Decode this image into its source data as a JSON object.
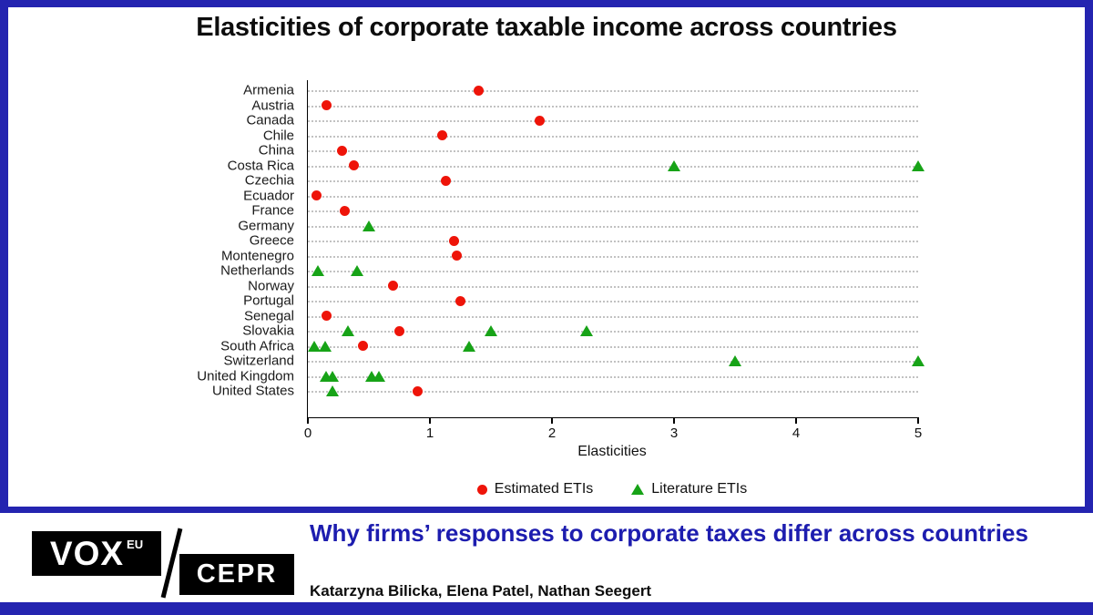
{
  "frame": {
    "accent_color": "#2424b0"
  },
  "chart": {
    "title": "Elasticities of corporate taxable income across countries",
    "xlabel": "Elasticities",
    "x_ticks": [
      0,
      1,
      2,
      3,
      4,
      5
    ]
  },
  "chart_data": {
    "type": "scatter",
    "title": "Elasticities of corporate taxable income across countries",
    "xlabel": "Elasticities",
    "ylabel": "",
    "xlim": [
      0,
      5
    ],
    "x_ticks": [
      0,
      1,
      2,
      3,
      4,
      5
    ],
    "grid": "horizontal dotted",
    "legend_position": "bottom",
    "categories": [
      "Armenia",
      "Austria",
      "Canada",
      "Chile",
      "China",
      "Costa Rica",
      "Czechia",
      "Ecuador",
      "France",
      "Germany",
      "Greece",
      "Montenegro",
      "Netherlands",
      "Norway",
      "Portugal",
      "Senegal",
      "Slovakia",
      "South Africa",
      "Switzerland",
      "United Kingdom",
      "United States"
    ],
    "series": [
      {
        "name": "Estimated ETIs",
        "marker": "circle",
        "color": "#ee1409",
        "points": [
          {
            "country": "Armenia",
            "x": 1.4
          },
          {
            "country": "Austria",
            "x": 0.15
          },
          {
            "country": "Canada",
            "x": 1.9
          },
          {
            "country": "Chile",
            "x": 1.1
          },
          {
            "country": "China",
            "x": 0.28
          },
          {
            "country": "Costa Rica",
            "x": 0.38
          },
          {
            "country": "Czechia",
            "x": 1.13
          },
          {
            "country": "Ecuador",
            "x": 0.07
          },
          {
            "country": "France",
            "x": 0.3
          },
          {
            "country": "Greece",
            "x": 1.2
          },
          {
            "country": "Montenegro",
            "x": 1.22
          },
          {
            "country": "Norway",
            "x": 0.7
          },
          {
            "country": "Portugal",
            "x": 1.25
          },
          {
            "country": "Senegal",
            "x": 0.15
          },
          {
            "country": "Slovakia",
            "x": 0.75
          },
          {
            "country": "South Africa",
            "x": 0.45
          },
          {
            "country": "United States",
            "x": 0.9
          }
        ]
      },
      {
        "name": "Literature ETIs",
        "marker": "triangle",
        "color": "#17a317",
        "points": [
          {
            "country": "Costa Rica",
            "x": 3.0
          },
          {
            "country": "Costa Rica",
            "x": 5.0
          },
          {
            "country": "Germany",
            "x": 0.5
          },
          {
            "country": "Netherlands",
            "x": 0.08
          },
          {
            "country": "Netherlands",
            "x": 0.4
          },
          {
            "country": "Slovakia",
            "x": 0.33
          },
          {
            "country": "Slovakia",
            "x": 1.5
          },
          {
            "country": "Slovakia",
            "x": 2.28
          },
          {
            "country": "South Africa",
            "x": 0.05
          },
          {
            "country": "South Africa",
            "x": 0.14
          },
          {
            "country": "South Africa",
            "x": 1.32
          },
          {
            "country": "Switzerland",
            "x": 3.5
          },
          {
            "country": "Switzerland",
            "x": 5.0
          },
          {
            "country": "United Kingdom",
            "x": 0.15
          },
          {
            "country": "United Kingdom",
            "x": 0.2
          },
          {
            "country": "United Kingdom",
            "x": 0.52
          },
          {
            "country": "United Kingdom",
            "x": 0.58
          },
          {
            "country": "United States",
            "x": 0.2
          }
        ]
      }
    ]
  },
  "footer": {
    "logo": {
      "vox": "VOX",
      "vox_sup": "EU",
      "cepr": "CEPR"
    },
    "title": "Why firms’ responses to corporate taxes differ across countries",
    "authors": "Katarzyna Bilicka, Elena Patel, Nathan Seegert"
  }
}
